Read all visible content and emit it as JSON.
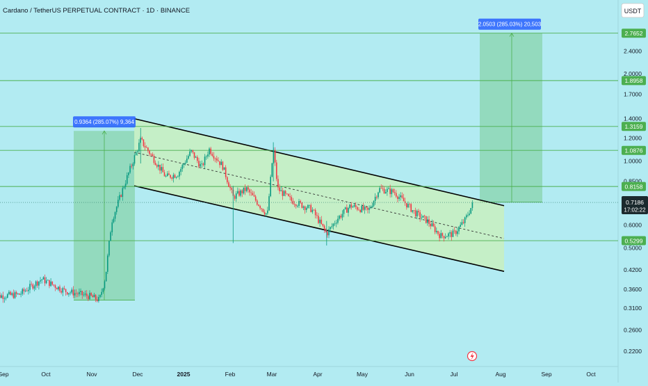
{
  "header": {
    "symbol_title": "Cardano / TetherUS PERPETUAL CONTRACT · 1D · BINANCE"
  },
  "currency_badge": "USDT",
  "colors": {
    "background": "#b2ebf2",
    "up": "#089981",
    "down": "#f23645",
    "level_line": "#4caf50",
    "level_label_bg": "#4caf50",
    "channel_fill": "#c8f0c0",
    "target_fill": "#8fd8b8",
    "measure_label_bg": "#2962ff",
    "price_tag_bg": "#1b2a2e"
  },
  "chart_data": {
    "type": "candlestick",
    "y_scale": "log",
    "ylim": [
      0.2,
      3.05
    ],
    "x_axis_labels": [
      "Sep",
      "Oct",
      "Nov",
      "Dec",
      "2025",
      "Feb",
      "Mar",
      "Apr",
      "May",
      "Jun",
      "Jul",
      "Aug",
      "Sep",
      "Oct"
    ],
    "y_tick_labels": [
      "2.4000",
      "2.0000",
      "1.7000",
      "1.4000",
      "1.2000",
      "1.0000",
      "0.8500",
      "0.7000",
      "0.6000",
      "0.5000",
      "0.4200",
      "0.3600",
      "0.3100",
      "0.2600",
      "0.2200"
    ],
    "y_ticks": [
      2.4,
      2.0,
      1.7,
      1.4,
      1.2,
      1.0,
      0.85,
      0.7,
      0.6,
      0.5,
      0.42,
      0.36,
      0.31,
      0.26,
      0.22
    ],
    "horizontal_levels": [
      {
        "value": 2.7652,
        "label": "2.7652"
      },
      {
        "value": 1.8958,
        "label": "1.8958"
      },
      {
        "value": 1.3159,
        "label": "1.3159"
      },
      {
        "value": 1.0876,
        "label": "1.0876"
      },
      {
        "value": 0.8158,
        "label": "0.8158"
      },
      {
        "value": 0.5299,
        "label": "0.5299"
      }
    ],
    "current_price": {
      "value": 0.7186,
      "label": "0.7186",
      "countdown": "17:02:22"
    },
    "measure_boxes": [
      {
        "label": "0.9364 (285.07%) 9,364",
        "from": 0.33,
        "to": 1.27
      },
      {
        "label": "2.0503 (285.03%) 20,503",
        "from": 0.72,
        "to": 2.7652
      }
    ],
    "descending_channel": {
      "upper_start": 1.4,
      "upper_end": 0.7,
      "lower_start": 0.82,
      "lower_end": 0.415
    },
    "anchors": [
      {
        "date": "Aug 24",
        "price": 0.34
      },
      {
        "date": "Sep 12",
        "price": 0.345
      },
      {
        "date": "Sep 28",
        "price": 0.39
      },
      {
        "date": "Oct 14",
        "price": 0.355
      },
      {
        "date": "Oct 31",
        "price": 0.34
      },
      {
        "date": "Nov 6",
        "price": 0.33
      },
      {
        "date": "Nov 10",
        "price": 0.4
      },
      {
        "date": "Nov 14",
        "price": 0.62
      },
      {
        "date": "Nov 22",
        "price": 0.82
      },
      {
        "date": "Nov 28",
        "price": 1.0
      },
      {
        "date": "Dec 3",
        "price": 1.18
      },
      {
        "date": "Dec 10",
        "price": 1.05
      },
      {
        "date": "Dec 20",
        "price": 0.88
      },
      {
        "date": "Dec 28",
        "price": 0.9
      },
      {
        "date": "Jan 6",
        "price": 1.08
      },
      {
        "date": "Jan 13",
        "price": 0.95
      },
      {
        "date": "Jan 18",
        "price": 1.1
      },
      {
        "date": "Jan 27",
        "price": 0.96
      },
      {
        "date": "Feb 3",
        "price": 0.75
      },
      {
        "date": "Feb 12",
        "price": 0.8
      },
      {
        "date": "Feb 26",
        "price": 0.65
      },
      {
        "date": "Mar 2",
        "price": 1.1
      },
      {
        "date": "Mar 5",
        "price": 0.8
      },
      {
        "date": "Mar 14",
        "price": 0.73
      },
      {
        "date": "Mar 28",
        "price": 0.68
      },
      {
        "date": "Apr 7",
        "price": 0.56
      },
      {
        "date": "Apr 14",
        "price": 0.63
      },
      {
        "date": "Apr 23",
        "price": 0.7
      },
      {
        "date": "May 5",
        "price": 0.67
      },
      {
        "date": "May 12",
        "price": 0.8
      },
      {
        "date": "May 22",
        "price": 0.78
      },
      {
        "date": "Jun 5",
        "price": 0.66
      },
      {
        "date": "Jun 13",
        "price": 0.62
      },
      {
        "date": "Jun 22",
        "price": 0.55
      },
      {
        "date": "Jul 1",
        "price": 0.56
      },
      {
        "date": "Jul 8",
        "price": 0.62
      },
      {
        "date": "Jul 14",
        "price": 0.7186
      }
    ],
    "grid": false,
    "legend": "none"
  }
}
